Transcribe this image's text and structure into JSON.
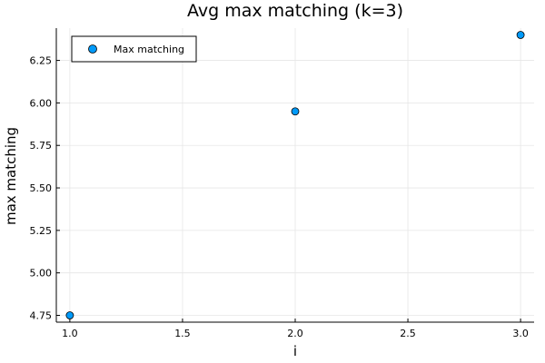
{
  "chart_data": {
    "type": "scatter",
    "title": "Avg max matching (k=3)",
    "xlabel": "i",
    "ylabel": "max matching",
    "series": [
      {
        "name": "Max matching",
        "x": [
          1.0,
          2.0,
          3.0
        ],
        "y": [
          4.75,
          5.95,
          6.4
        ],
        "color": "#009af9"
      }
    ],
    "xlim": [
      0.94,
      3.06
    ],
    "ylim": [
      4.71,
      6.44
    ],
    "xticks": [
      1.0,
      1.5,
      2.0,
      2.5,
      3.0
    ],
    "xtick_labels": [
      "1.0",
      "1.5",
      "2.0",
      "2.5",
      "3.0"
    ],
    "yticks": [
      4.75,
      5.0,
      5.25,
      5.5,
      5.75,
      6.0,
      6.25
    ],
    "ytick_labels": [
      "4.75",
      "5.00",
      "5.25",
      "5.50",
      "5.75",
      "6.00",
      "6.25"
    ],
    "grid": true,
    "legend_position": "top-left"
  }
}
